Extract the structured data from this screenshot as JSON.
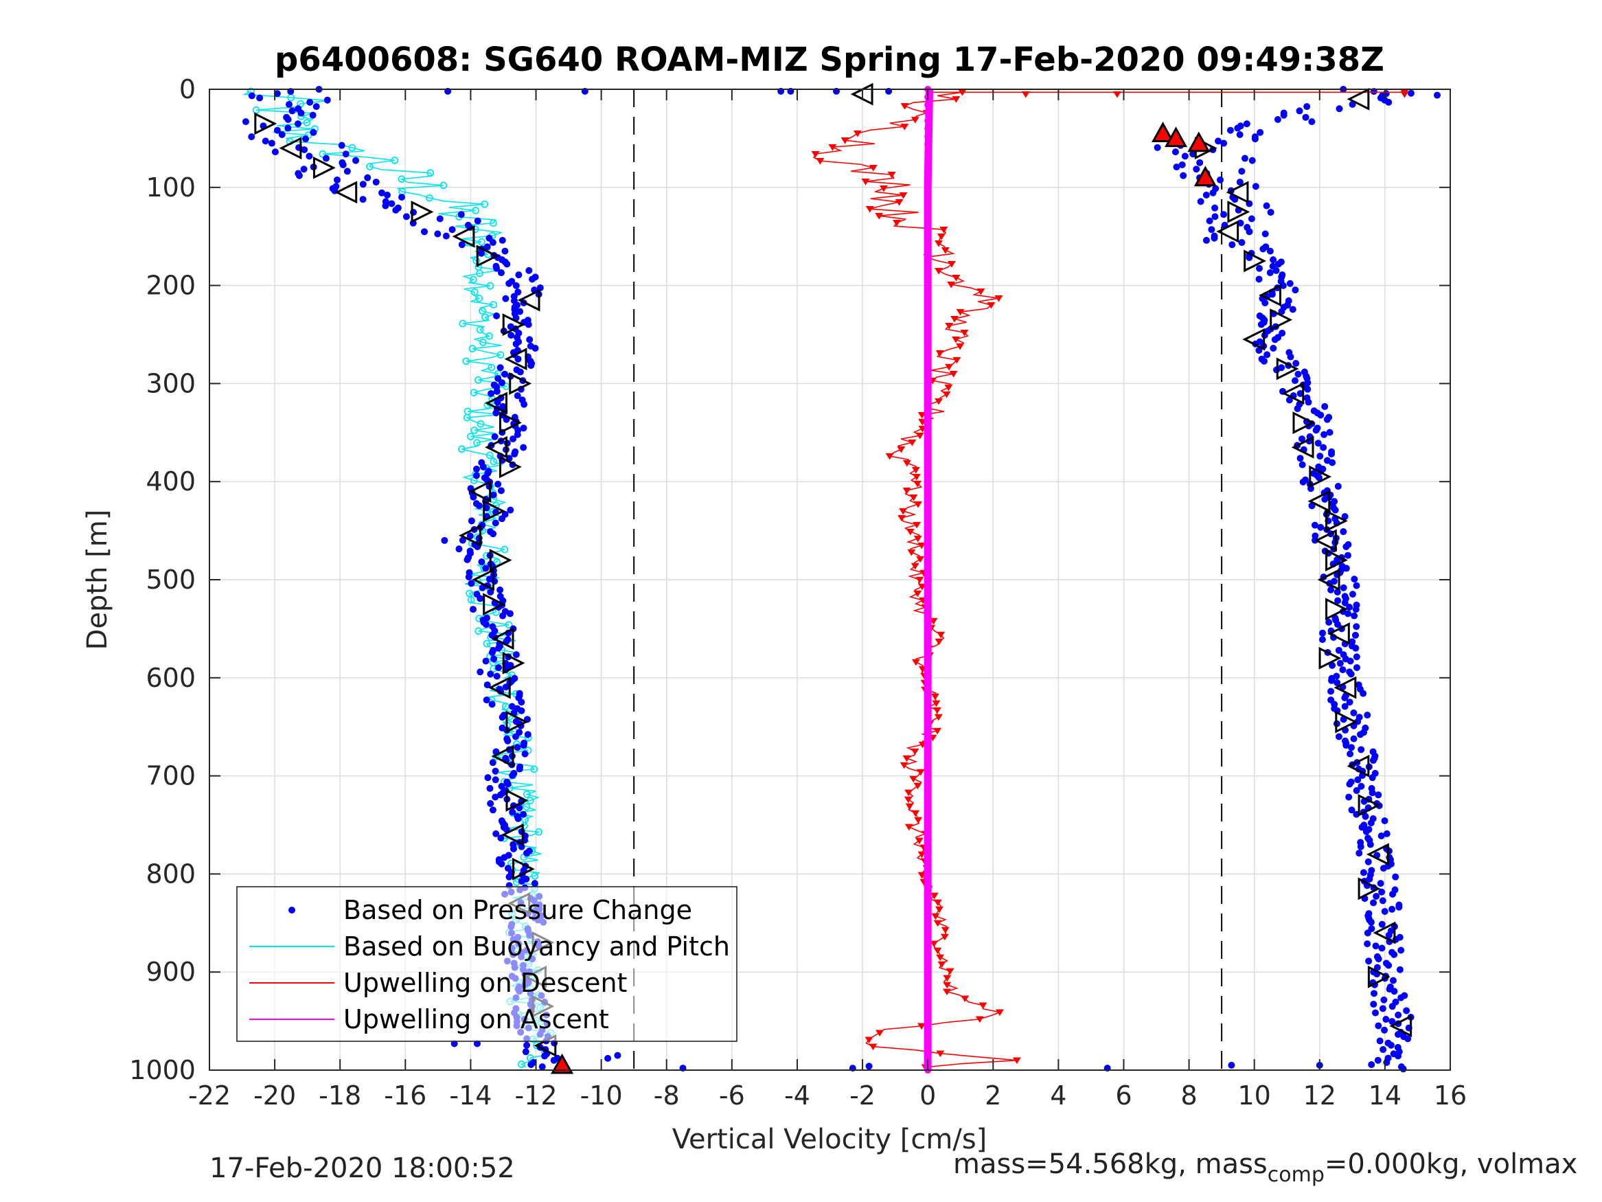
{
  "chart_data": {
    "type": "scatter",
    "title": "p6400608: SG640 ROAM-MIZ Spring 17-Feb-2020 09:49:38Z",
    "xlabel": "Vertical Velocity [cm/s]",
    "ylabel": "Depth [m]",
    "xlim": [
      -22,
      16
    ],
    "ylim": [
      1000,
      0
    ],
    "y_reversed": true,
    "grid": true,
    "xticks": [
      "-22",
      "-20",
      "-18",
      "-16",
      "-14",
      "-12",
      "-10",
      "-8",
      "-6",
      "-4",
      "-2",
      "0",
      "2",
      "4",
      "6",
      "8",
      "10",
      "12",
      "14",
      "16"
    ],
    "yticks": [
      "0",
      "100",
      "200",
      "300",
      "400",
      "500",
      "600",
      "700",
      "800",
      "900",
      "1000"
    ],
    "legend_position": "bottom-left",
    "threshold_lines": [
      -9,
      9
    ],
    "series": [
      {
        "name": "Based on Pressure Change",
        "style": "dots",
        "color": "#0000ff",
        "descent": {
          "depth": [
            0,
            10,
            20,
            40,
            60,
            80,
            100,
            120,
            150,
            170,
            200,
            230,
            260,
            300,
            330,
            360,
            400,
            430,
            460,
            500,
            530,
            560,
            600,
            650,
            700,
            760,
            800,
            850,
            900,
            950,
            1000
          ],
          "velocity": [
            -19.5,
            -19.5,
            -20.0,
            -20.0,
            -19.0,
            -18.5,
            -17.5,
            -15.5,
            -14.0,
            -13.0,
            -12.3,
            -12.7,
            -12.5,
            -12.8,
            -12.9,
            -12.8,
            -13.5,
            -13.3,
            -13.9,
            -13.6,
            -13.4,
            -13.0,
            -13.2,
            -12.7,
            -13.0,
            -12.8,
            -12.6,
            -12.2,
            -12.4,
            -12.1,
            -11.6
          ]
        },
        "ascent": {
          "depth": [
            10,
            40,
            60,
            70,
            90,
            110,
            130,
            150,
            170,
            200,
            230,
            260,
            300,
            330,
            360,
            400,
            430,
            460,
            500,
            530,
            560,
            600,
            650,
            700,
            750,
            800,
            850,
            900,
            950,
            990
          ],
          "velocity": [
            13.5,
            10.5,
            8.0,
            9.0,
            8.5,
            9.5,
            9.3,
            9.5,
            10.2,
            10.8,
            10.7,
            10.5,
            11.2,
            11.8,
            11.8,
            12.0,
            12.3,
            12.4,
            12.6,
            12.8,
            12.6,
            12.8,
            13.0,
            13.3,
            13.5,
            13.8,
            14.0,
            14.0,
            14.3,
            14.1
          ]
        }
      },
      {
        "name": "Based on Buoyancy and Pitch",
        "style": "line-circles",
        "color": "#00e5ee",
        "depth": [
          0,
          10,
          20,
          40,
          60,
          70,
          90,
          110,
          130,
          150,
          170,
          200,
          230,
          260,
          300,
          330,
          360,
          400,
          430,
          460,
          500,
          530,
          560,
          600,
          650,
          700,
          760,
          800,
          850,
          900,
          950,
          990
        ],
        "velocity": [
          -21.5,
          -19.5,
          -19.8,
          -19.5,
          -18.5,
          -17.0,
          -16.0,
          -15.0,
          -14.2,
          -13.8,
          -13.7,
          -13.6,
          -13.7,
          -13.6,
          -13.5,
          -13.6,
          -13.7,
          -13.6,
          -13.4,
          -13.5,
          -13.6,
          -13.5,
          -13.2,
          -13.0,
          -12.8,
          -12.6,
          -12.4,
          -12.4,
          -12.3,
          -12.3,
          -12.2,
          -11.9
        ]
      },
      {
        "name": "Upwelling on Descent",
        "style": "line-triangles",
        "color": "#ff0000",
        "depth": [
          5,
          20,
          40,
          55,
          65,
          75,
          90,
          100,
          120,
          140,
          160,
          180,
          200,
          215,
          230,
          250,
          270,
          290,
          310,
          340,
          370,
          390,
          410,
          440,
          470,
          500,
          530,
          560,
          590,
          620,
          650,
          680,
          710,
          740,
          770,
          800,
          830,
          860,
          890,
          920,
          945,
          960,
          975,
          990,
          1000
        ],
        "velocity": [
          0.8,
          -0.5,
          -1.2,
          -2.0,
          -3.0,
          -2.5,
          -1.5,
          -0.8,
          -1.2,
          -0.3,
          0.6,
          0.8,
          1.2,
          2.0,
          1.0,
          0.9,
          0.6,
          0.4,
          0.2,
          0.1,
          -1.0,
          -0.2,
          -0.5,
          -0.6,
          -0.3,
          -0.4,
          -0.2,
          0.3,
          -0.3,
          0.1,
          0.2,
          -0.6,
          -0.3,
          -0.5,
          -0.2,
          -0.3,
          0.3,
          0.4,
          0.5,
          0.7,
          2.2,
          -1.5,
          -1.8,
          2.5,
          -1.5
        ]
      },
      {
        "name": "Upwelling on Ascent",
        "style": "line",
        "color": "#ff00ff",
        "depth": [
          0,
          100,
          200,
          300,
          400,
          500,
          600,
          700,
          800,
          900,
          1000
        ],
        "velocity": [
          0.05,
          0.0,
          0.0,
          0.0,
          0.0,
          0.0,
          0.0,
          0.0,
          0.0,
          0.0,
          0.0
        ]
      }
    ],
    "markers": {
      "descent_triangles": {
        "depth": [
          5,
          35,
          60,
          80,
          105,
          125,
          150,
          170,
          215,
          240,
          275,
          300,
          320,
          340,
          365,
          385,
          410,
          430,
          455,
          480,
          500,
          525,
          560,
          585,
          610,
          645,
          680,
          725,
          760,
          795,
          830,
          870,
          905,
          935,
          975
        ],
        "velocity": [
          -2.0,
          -20.3,
          -19.5,
          -18.5,
          -17.8,
          -15.5,
          -14.2,
          -13.5,
          -12.2,
          -12.7,
          -12.6,
          -12.5,
          -13.2,
          -12.8,
          -13.2,
          -12.8,
          -13.7,
          -13.3,
          -14.0,
          -13.1,
          -13.6,
          -13.3,
          -13.0,
          -12.7,
          -13.1,
          -12.6,
          -13.0,
          -12.6,
          -12.7,
          -12.4,
          -12.5,
          -11.8,
          -12.0,
          -11.8,
          -11.7
        ]
      },
      "ascent_triangles": {
        "depth": [
          10,
          60,
          105,
          125,
          145,
          175,
          210,
          235,
          255,
          285,
          310,
          340,
          365,
          395,
          420,
          440,
          460,
          480,
          500,
          530,
          555,
          580,
          610,
          645,
          690,
          730,
          780,
          815,
          860,
          905,
          955
        ],
        "velocity": [
          13.2,
          8.5,
          9.5,
          9.5,
          9.2,
          10.0,
          10.5,
          10.8,
          10.0,
          11.0,
          11.2,
          11.5,
          11.5,
          12.0,
          12.0,
          12.5,
          12.2,
          12.5,
          12.3,
          12.5,
          12.6,
          12.3,
          12.8,
          12.8,
          13.2,
          13.5,
          13.8,
          13.5,
          14.0,
          13.8,
          14.5
        ]
      },
      "apogee_red_triangles": {
        "depth": [
          45,
          50,
          55,
          90,
          995
        ],
        "velocity": [
          7.2,
          7.6,
          8.3,
          8.5,
          -11.2
        ]
      }
    }
  },
  "footer": {
    "left": "17-Feb-2020 18:00:52",
    "right_prefix": "mass=54.568kg, mass",
    "right_sub": "comp",
    "right_suffix": "=0.000kg, volmax"
  }
}
